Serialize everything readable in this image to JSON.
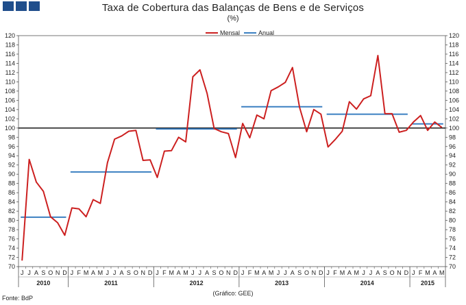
{
  "header": {
    "title": "Taxa de Cobertura das Balanças de Bens e de Serviços",
    "subtitle": "(%)",
    "source": "Fonte: BdP",
    "credit": "(Gráfico: GEE)",
    "logo_color": "#1f4e8c"
  },
  "chart_data": {
    "type": "line",
    "title": "Taxa de Cobertura das Balanças de Bens e de Serviços",
    "subtitle": "(%)",
    "ylim": [
      70,
      120
    ],
    "ytick_step": 2,
    "grid": false,
    "legend_position": "top-center",
    "reference_line": 100,
    "month_labels": [
      "J",
      "J",
      "A",
      "S",
      "O",
      "N",
      "D",
      "J",
      "F",
      "M",
      "A",
      "M",
      "J",
      "J",
      "A",
      "S",
      "O",
      "N",
      "D",
      "J",
      "F",
      "M",
      "A",
      "M",
      "J",
      "J",
      "A",
      "S",
      "O",
      "N",
      "D",
      "J",
      "F",
      "M",
      "A",
      "M",
      "J",
      "J",
      "A",
      "S",
      "O",
      "N",
      "D",
      "J",
      "F",
      "M",
      "A",
      "M",
      "J",
      "J",
      "A",
      "S",
      "O",
      "N",
      "D",
      "J",
      "F",
      "M",
      "A",
      "M"
    ],
    "years": [
      {
        "label": "2010",
        "start": 0,
        "end": 6
      },
      {
        "label": "2011",
        "start": 7,
        "end": 18
      },
      {
        "label": "2012",
        "start": 19,
        "end": 30
      },
      {
        "label": "2013",
        "start": 31,
        "end": 42
      },
      {
        "label": "2014",
        "start": 43,
        "end": 54
      },
      {
        "label": "2015",
        "start": 55,
        "end": 59
      }
    ],
    "series": [
      {
        "name": "Mensal",
        "color": "#cc1f1f",
        "values": [
          71.3,
          93.2,
          88.3,
          86.3,
          80.8,
          79.5,
          76.8,
          82.7,
          82.5,
          80.8,
          84.5,
          83.7,
          92.5,
          97.6,
          98.3,
          99.3,
          99.5,
          93.0,
          93.1,
          89.3,
          95.0,
          95.1,
          98.0,
          97.0,
          111.1,
          112.6,
          107.5,
          99.9,
          99.2,
          98.8,
          93.6,
          101.0,
          97.9,
          102.8,
          102.0,
          108.1,
          108.9,
          109.9,
          113.1,
          104.5,
          99.2,
          104.0,
          103.0,
          95.9,
          97.5,
          99.3,
          105.7,
          104.1,
          106.3,
          107.0,
          115.7,
          103.1,
          103.1,
          99.1,
          99.5,
          101.3,
          102.7,
          99.5,
          101.3,
          100.1
        ]
      },
      {
        "name": "Anual",
        "color": "#3a7fc1",
        "segments": [
          {
            "start": 0,
            "end": 6,
            "value": 80.7
          },
          {
            "start": 7,
            "end": 18,
            "value": 90.5
          },
          {
            "start": 19,
            "end": 30,
            "value": 99.8
          },
          {
            "start": 31,
            "end": 42,
            "value": 104.6
          },
          {
            "start": 43,
            "end": 54,
            "value": 103.0
          },
          {
            "start": 55,
            "end": 59,
            "value": 100.9
          }
        ]
      }
    ]
  }
}
